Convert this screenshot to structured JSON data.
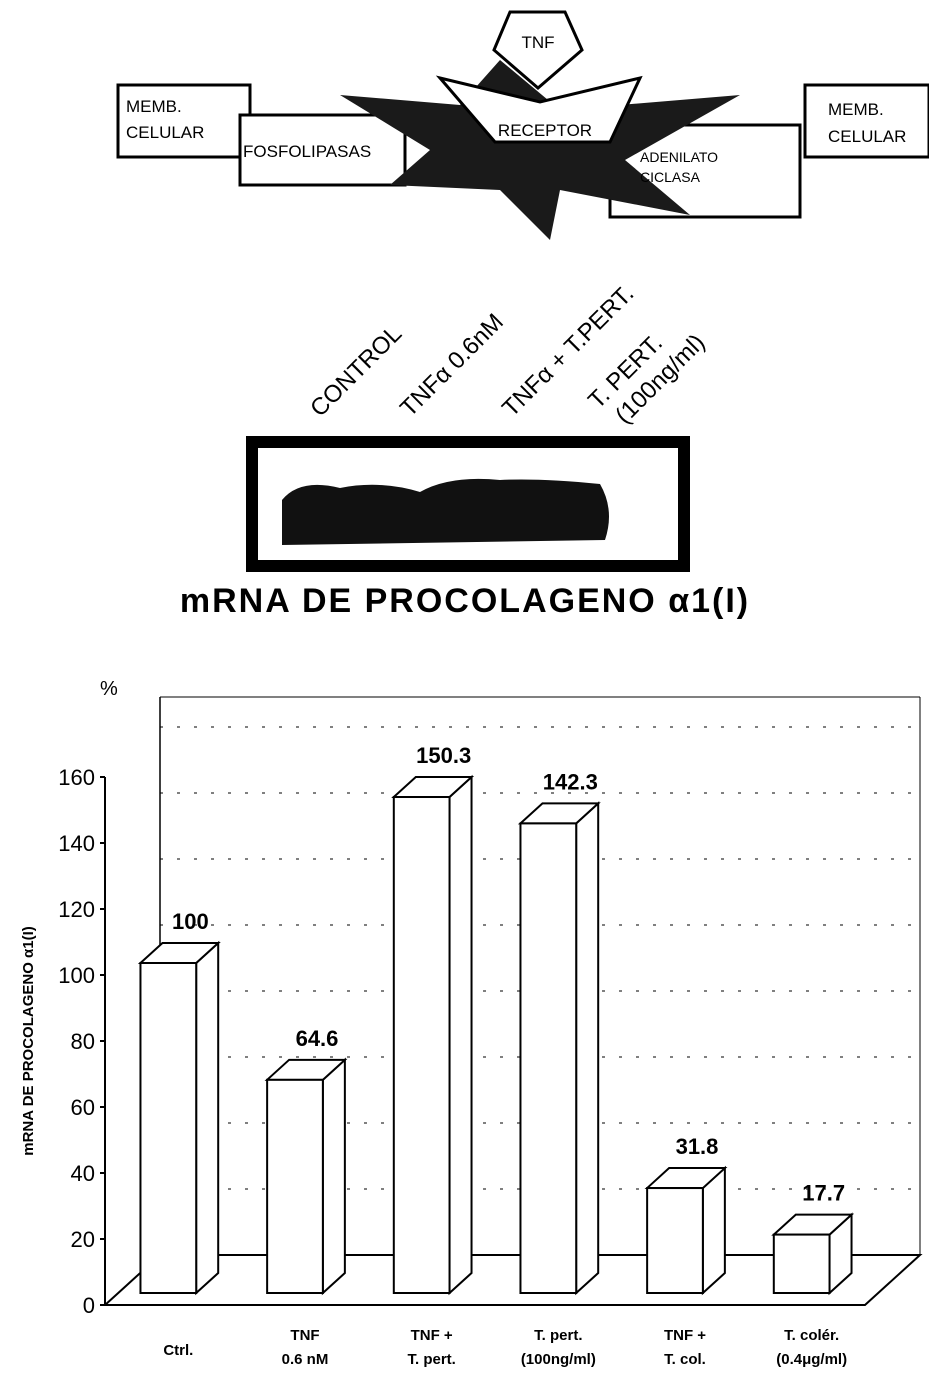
{
  "diagram": {
    "ligand": "TNF",
    "left_membrane": [
      "MEMB.",
      "CELULAR"
    ],
    "right_membrane": [
      "MEMB.",
      "CELULAR"
    ],
    "phospholipase": "FOSFOLIPASAS",
    "receptor": "RECEPTOR",
    "cyclase": [
      "ADENILATO",
      "CICLASA"
    ]
  },
  "blot": {
    "lanes": [
      "CONTROL",
      "TNFα 0.6nM",
      "TNFα + T.PERT.",
      "T. PERT.",
      "(100ng/ml)"
    ],
    "title": "mRNA DE PROCOLAGENO α1(I)"
  },
  "chart_data": {
    "type": "bar",
    "unit": "%",
    "y_label": "mRNA DE PROCOLAGENO α1(I)",
    "categories": [
      "Ctrl.",
      "TNF\n0.6 nM",
      "TNF +\nT. pert.",
      "T. pert.\n(100ng/ml)",
      "TNF +\nT. col.",
      "T. colér.\n(0.4μg/ml)"
    ],
    "values": [
      100,
      64.6,
      150.3,
      142.3,
      31.8,
      17.7
    ],
    "color": "#ffffff",
    "ylim": [
      0,
      160
    ],
    "yticks": [
      0,
      20,
      40,
      60,
      80,
      100,
      120,
      140,
      160
    ],
    "grid": true
  }
}
